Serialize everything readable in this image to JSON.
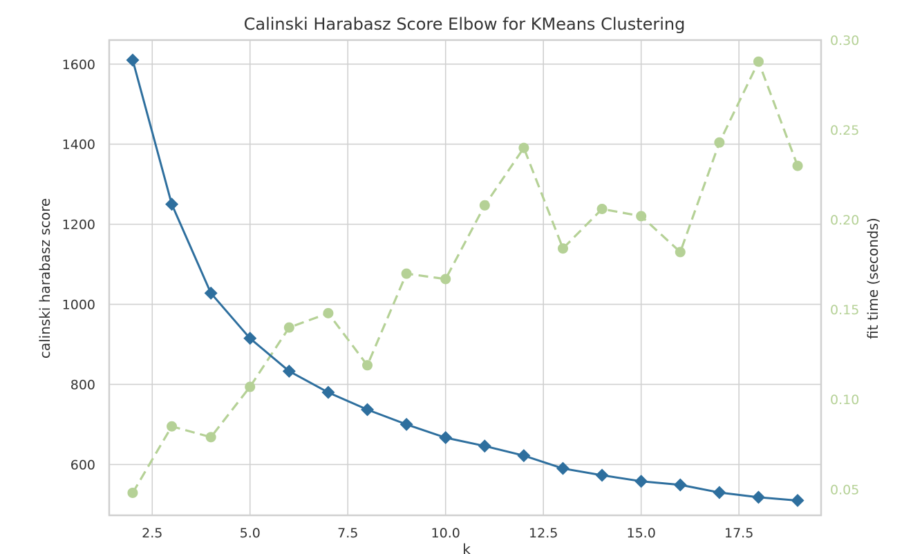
{
  "chart_data": {
    "type": "line",
    "title": "Calinski Harabasz Score Elbow for KMeans Clustering",
    "xlabel": "k",
    "ylabel": "calinski harabasz score",
    "y2label": "fit time (seconds)",
    "xlim": [
      1.4,
      19.6
    ],
    "ylim": [
      473,
      1660
    ],
    "y2lim": [
      0.0355,
      0.3
    ],
    "xticks": [
      "2.5",
      "5.0",
      "7.5",
      "10.0",
      "12.5",
      "15.0",
      "17.5"
    ],
    "xtick_values": [
      2.5,
      5.0,
      7.5,
      10.0,
      12.5,
      15.0,
      17.5
    ],
    "yticks": [
      "600",
      "800",
      "1000",
      "1200",
      "1400",
      "1600"
    ],
    "ytick_values": [
      600,
      800,
      1000,
      1200,
      1400,
      1600
    ],
    "y2ticks": [
      "0.05",
      "0.10",
      "0.15",
      "0.20",
      "0.25",
      "0.30"
    ],
    "y2tick_values": [
      0.05,
      0.1,
      0.15,
      0.2,
      0.25,
      0.3
    ],
    "grid": true,
    "x": [
      2,
      3,
      4,
      5,
      6,
      7,
      8,
      9,
      10,
      11,
      12,
      13,
      14,
      15,
      16,
      17,
      18,
      19
    ],
    "series": [
      {
        "axis": "left",
        "color": "#2e6f9e",
        "marker": "diamond",
        "line": "solid",
        "values": [
          1610,
          1250,
          1028,
          915,
          833,
          780,
          737,
          700,
          667,
          646,
          622,
          590,
          573,
          558,
          549,
          530,
          518,
          510
        ]
      },
      {
        "axis": "right",
        "color": "#b5d196",
        "marker": "circle",
        "line": "dashed",
        "values": [
          0.048,
          0.085,
          0.079,
          0.107,
          0.14,
          0.148,
          0.119,
          0.17,
          0.167,
          0.208,
          0.24,
          0.184,
          0.206,
          0.202,
          0.182,
          0.243,
          0.288,
          0.23
        ]
      }
    ]
  }
}
